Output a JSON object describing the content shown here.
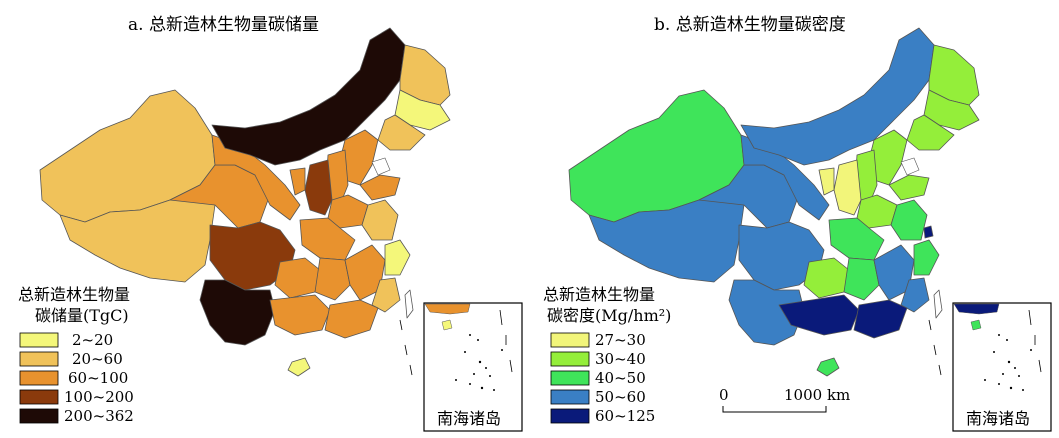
{
  "panels": [
    {
      "id": "a",
      "title": "a. 总新造林生物量碳储量",
      "legend": {
        "title_line1": "总新造林生物量",
        "title_line2": "碳储量(TgC)",
        "classes": [
          {
            "label": "2~20",
            "color": "#f4f77a"
          },
          {
            "label": "20~60",
            "color": "#f0c25a"
          },
          {
            "label": "60~100",
            "color": "#e8922e"
          },
          {
            "label": "100~200",
            "color": "#8a3a0c"
          },
          {
            "label": "200~362",
            "color": "#1e0a06"
          }
        ]
      },
      "inset_label": "南海诸岛"
    },
    {
      "id": "b",
      "title": "b. 总新造林生物量碳密度",
      "legend": {
        "title_line1": "总新造林生物量",
        "title_line2": "碳密度(Mg/hm²)",
        "classes": [
          {
            "label": "27~30",
            "color": "#f2f57a"
          },
          {
            "label": "30~40",
            "color": "#94ee3a"
          },
          {
            "label": "40~50",
            "color": "#3fe45a"
          },
          {
            "label": "50~60",
            "color": "#3a7fc4"
          },
          {
            "label": "60~125",
            "color": "#0a1a7a"
          }
        ]
      },
      "inset_label": "南海诸岛",
      "scale_bar": {
        "start": "0",
        "end": "1000 km"
      }
    }
  ]
}
